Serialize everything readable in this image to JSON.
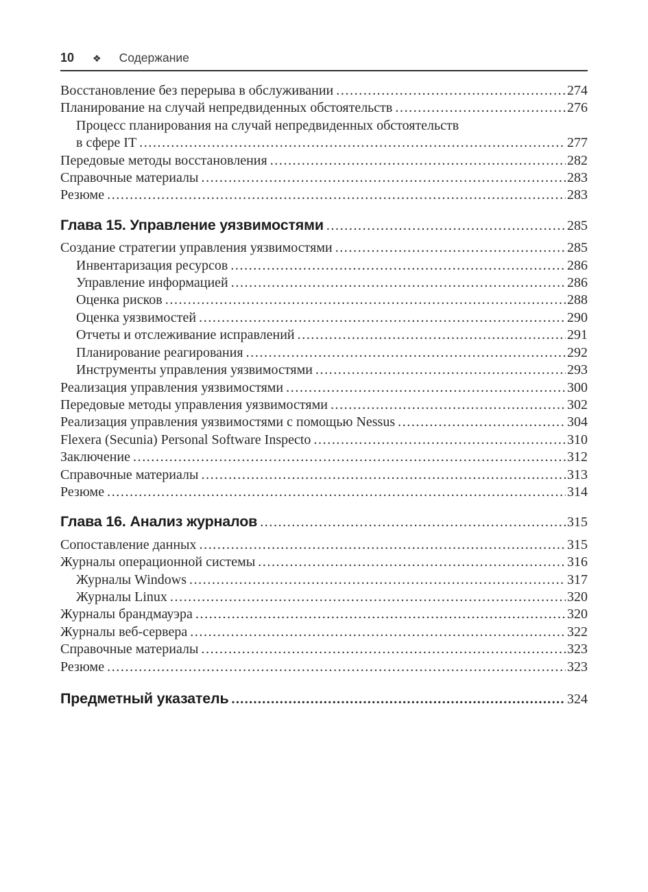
{
  "header": {
    "page_number": "10",
    "separator_icon": "❖",
    "title": "Содержание"
  },
  "colors": {
    "background": "#ffffff",
    "body_text": "#282828",
    "heading_text": "#1c1c1c",
    "rule": "#2d2d2d"
  },
  "toc": {
    "rows": [
      {
        "type": "entry",
        "indent": 0,
        "label": "Восстановление без перерыва в обслуживании",
        "page": "274"
      },
      {
        "type": "entry",
        "indent": 0,
        "label": "Планирование на случай непредвиденных обстоятельств",
        "page": "276"
      },
      {
        "type": "wrap",
        "indent": 1,
        "label": "Процесс планирования на случай непредвиденных обстоятельств",
        "page": ""
      },
      {
        "type": "entry",
        "indent": 1,
        "label": "в сфере IT",
        "page": "277"
      },
      {
        "type": "entry",
        "indent": 0,
        "label": "Передовые методы восстановления",
        "page": "282"
      },
      {
        "type": "entry",
        "indent": 0,
        "label": "Справочные материалы",
        "page": "283"
      },
      {
        "type": "entry",
        "indent": 0,
        "label": "Резюме",
        "page": "283"
      },
      {
        "type": "chapter",
        "indent": 0,
        "label": "Глава 15. Управление уязвимостями",
        "page": "285"
      },
      {
        "type": "entry",
        "indent": 0,
        "label": "Создание стратегии управления уязвимостями",
        "page": "285"
      },
      {
        "type": "entry",
        "indent": 1,
        "label": "Инвентаризация ресурсов",
        "page": "286"
      },
      {
        "type": "entry",
        "indent": 1,
        "label": "Управление информацией",
        "page": "286"
      },
      {
        "type": "entry",
        "indent": 1,
        "label": "Оценка рисков",
        "page": "288"
      },
      {
        "type": "entry",
        "indent": 1,
        "label": "Оценка уязвимостей",
        "page": "290"
      },
      {
        "type": "entry",
        "indent": 1,
        "label": "Отчеты и отслеживание исправлений",
        "page": "291"
      },
      {
        "type": "entry",
        "indent": 1,
        "label": "Планирование реагирования",
        "page": "292"
      },
      {
        "type": "entry",
        "indent": 1,
        "label": "Инструменты управления уязвимостями",
        "page": "293"
      },
      {
        "type": "entry",
        "indent": 0,
        "label": "Реализация управления уязвимостями",
        "page": "300"
      },
      {
        "type": "entry",
        "indent": 0,
        "label": "Передовые методы управления уязвимостями",
        "page": "302"
      },
      {
        "type": "entry",
        "indent": 0,
        "label": "Реализация управления уязвимостями с помощью Nessus",
        "page": "304"
      },
      {
        "type": "entry",
        "indent": 0,
        "label": "Flexera (Secunia) Personal Software Inspecto",
        "page": "310"
      },
      {
        "type": "entry",
        "indent": 0,
        "label": "Заключение",
        "page": "312"
      },
      {
        "type": "entry",
        "indent": 0,
        "label": "Справочные материалы",
        "page": "313"
      },
      {
        "type": "entry",
        "indent": 0,
        "label": "Резюме",
        "page": "314"
      },
      {
        "type": "chapter",
        "indent": 0,
        "label": "Глава 16. Анализ журналов",
        "page": "315"
      },
      {
        "type": "entry",
        "indent": 0,
        "label": "Сопоставление данных",
        "page": "315"
      },
      {
        "type": "entry",
        "indent": 0,
        "label": "Журналы операционной системы",
        "page": "316"
      },
      {
        "type": "entry",
        "indent": 1,
        "label": "Журналы Windows",
        "page": "317"
      },
      {
        "type": "entry",
        "indent": 1,
        "label": "Журналы Linux",
        "page": "320"
      },
      {
        "type": "entry",
        "indent": 0,
        "label": "Журналы брандмауэра",
        "page": "320"
      },
      {
        "type": "entry",
        "indent": 0,
        "label": "Журналы веб-сервера",
        "page": "322"
      },
      {
        "type": "entry",
        "indent": 0,
        "label": "Справочные материалы",
        "page": "323"
      },
      {
        "type": "entry",
        "indent": 0,
        "label": "Резюме",
        "page": "323"
      },
      {
        "type": "index",
        "indent": 0,
        "label": "Предметный указатель",
        "page": "324"
      }
    ]
  }
}
